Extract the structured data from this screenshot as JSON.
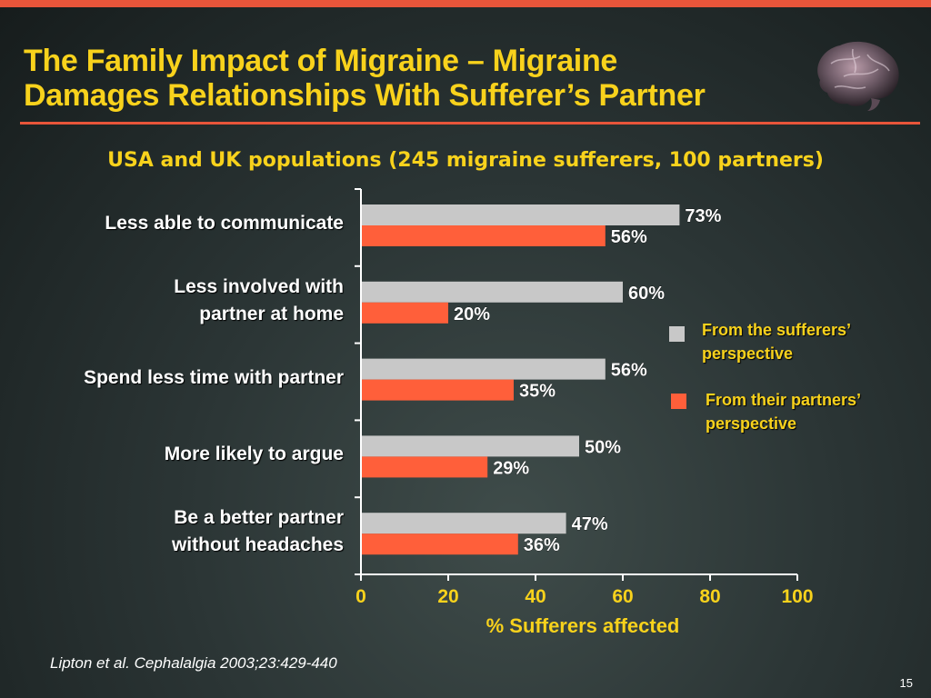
{
  "slide": {
    "title_line1": "The Family Impact of Migraine – Migraine",
    "title_line2": "Damages Relationships With Sufferer’s Partner",
    "subtitle": "USA and UK populations (245 migraine sufferers, 100 partners)",
    "source": "Lipton et al. Cephalalgia 2003;23:429-440",
    "page_number": "15",
    "brain_image": "brain-icon"
  },
  "colors": {
    "accent": "#e8553a",
    "title": "#f8d21c",
    "sufferers_bar": "#c8c8c8",
    "partners_bar": "#ff5f3a"
  },
  "chart_data": {
    "type": "bar",
    "orientation": "horizontal",
    "categories": [
      "Less able to communicate",
      "Less involved with partner at home",
      "Spend less time with partner",
      "More likely to argue",
      "Be a better partner without headaches"
    ],
    "category_lines": [
      [
        "Less able to communicate"
      ],
      [
        "Less involved with",
        "partner at home"
      ],
      [
        "Spend less time with partner"
      ],
      [
        "More likely to argue"
      ],
      [
        "Be a better partner",
        "without headaches"
      ]
    ],
    "series": [
      {
        "name": "From the sufferers’ perspective",
        "legend_lines": [
          "From the sufferers’",
          "perspective"
        ],
        "values": [
          73,
          60,
          56,
          50,
          47
        ]
      },
      {
        "name": "From their partners’ perspective",
        "legend_lines": [
          "From their partners’",
          "perspective"
        ],
        "values": [
          56,
          20,
          35,
          29,
          36
        ]
      }
    ],
    "data_labels": [
      [
        "73%",
        "60%",
        "56%",
        "50%",
        "47%"
      ],
      [
        "56%",
        "20%",
        "35%",
        "29%",
        "36%"
      ]
    ],
    "xlabel": "% Sufferers affected",
    "xlim": [
      0,
      100
    ],
    "xticks": [
      "0",
      "20",
      "40",
      "60",
      "80",
      "100"
    ],
    "legend_position": "right",
    "grid": false
  }
}
